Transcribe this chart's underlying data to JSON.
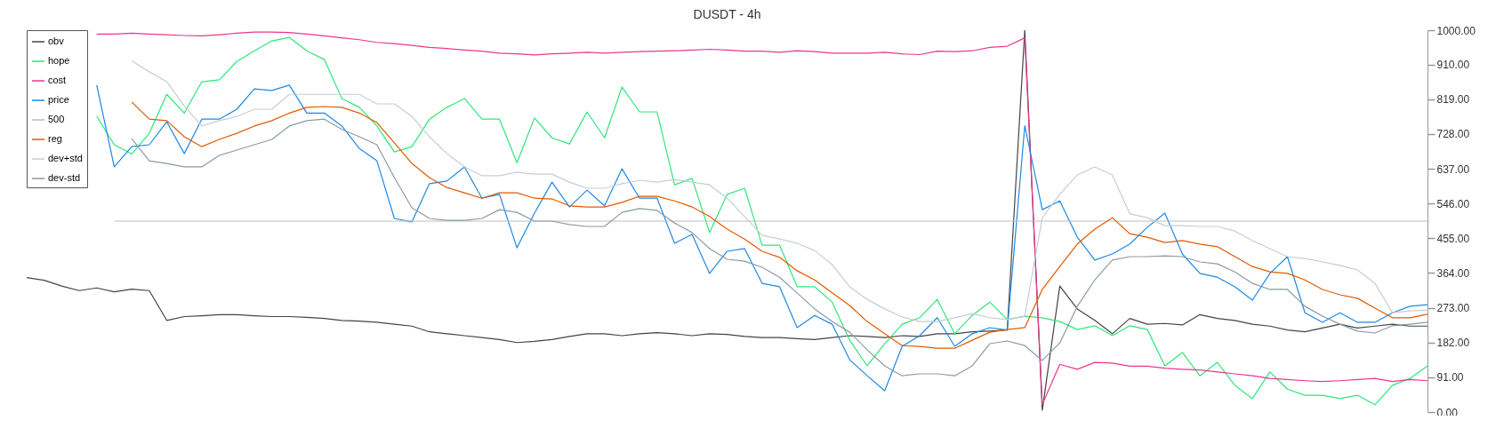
{
  "chart_data": {
    "type": "line",
    "title": "DUSDT - 4h",
    "categories": [
      null,
      null,
      null,
      null,
      null,
      null,
      null,
      null,
      null,
      null,
      null,
      null,
      null,
      null,
      null,
      null,
      null,
      null,
      null,
      null,
      null,
      null,
      null,
      null,
      null,
      null,
      null,
      null,
      null,
      null,
      null,
      null,
      null,
      null,
      null,
      null,
      null,
      null,
      null,
      null,
      null,
      null,
      null,
      null,
      null,
      null,
      null,
      null,
      null,
      null,
      null,
      null,
      null,
      null,
      null,
      null,
      null,
      null,
      null,
      null,
      null,
      null,
      null,
      null,
      null,
      null,
      null,
      null,
      null,
      null,
      null,
      null,
      null,
      null,
      null,
      null,
      null,
      null,
      null,
      null,
      null
    ],
    "series": [
      {
        "name": "obv",
        "color": "#444444",
        "values": [
          352,
          345,
          330,
          318,
          325,
          315,
          322,
          318,
          240,
          250,
          252,
          255,
          255,
          252,
          250,
          250,
          248,
          245,
          240,
          238,
          235,
          230,
          225,
          210,
          205,
          200,
          195,
          190,
          182,
          185,
          190,
          198,
          205,
          205,
          200,
          205,
          208,
          205,
          200,
          205,
          203,
          198,
          195,
          195,
          192,
          190,
          195,
          200,
          198,
          195,
          200,
          198,
          205,
          205,
          210,
          212,
          215,
          1000,
          5,
          330,
          270,
          240,
          205,
          245,
          230,
          232,
          228,
          255,
          245,
          240,
          230,
          225,
          215,
          210,
          220,
          230,
          220,
          225,
          230,
          225,
          225
        ]
      },
      {
        "name": "hope",
        "color": "#2ee67a",
        "values": [
          null,
          null,
          null,
          null,
          775,
          700,
          676,
          730,
          832,
          783,
          865,
          870,
          918,
          946,
          972,
          981,
          946,
          923,
          821,
          798,
          749,
          681,
          695,
          767,
          798,
          821,
          767,
          767,
          653,
          770,
          718,
          702,
          786,
          718,
          851,
          786,
          786,
          595,
          612,
          470,
          570,
          586,
          437,
          437,
          328,
          328,
          288,
          188,
          121,
          179,
          230,
          247,
          295,
          205,
          253,
          288,
          242,
          251,
          247,
          237,
          216,
          226,
          200,
          226,
          216,
          121,
          156,
          95,
          130,
          70,
          35,
          105,
          60,
          44,
          44,
          35,
          44,
          19,
          70,
          88,
          121
        ]
      },
      {
        "name": "cost",
        "color": "#e8388f",
        "values": [
          null,
          null,
          null,
          null,
          990,
          990,
          992,
          990,
          988,
          986,
          985,
          988,
          992,
          995,
          995,
          994,
          990,
          985,
          980,
          975,
          968,
          965,
          960,
          955,
          952,
          948,
          945,
          940,
          938,
          935,
          938,
          940,
          942,
          940,
          942,
          944,
          945,
          946,
          948,
          950,
          948,
          945,
          945,
          942,
          946,
          944,
          940,
          940,
          940,
          942,
          938,
          936,
          945,
          944,
          946,
          955,
          958,
          980,
          20,
          125,
          112,
          130,
          128,
          120,
          120,
          115,
          112,
          110,
          105,
          100,
          95,
          88,
          85,
          82,
          80,
          82,
          85,
          88,
          80,
          85,
          82
        ]
      },
      {
        "name": "price",
        "color": "#1e88e5",
        "values": [
          null,
          null,
          null,
          null,
          856,
          642,
          695,
          700,
          760,
          677,
          767,
          767,
          793,
          846,
          842,
          856,
          783,
          783,
          749,
          690,
          658,
          507,
          498,
          598,
          605,
          642,
          560,
          570,
          430,
          521,
          602,
          537,
          581,
          540,
          637,
          560,
          560,
          442,
          465,
          363,
          421,
          428,
          337,
          328,
          221,
          253,
          230,
          137,
          95,
          56,
          172,
          200,
          247,
          172,
          205,
          221,
          215,
          750,
          530,
          553,
          458,
          398,
          414,
          440,
          484,
          521,
          414,
          363,
          353,
          328,
          293,
          363,
          407,
          260,
          235,
          260,
          235,
          235,
          260,
          277,
          281
        ]
      },
      {
        "name": "500",
        "color": "#bdbdbd",
        "values": [
          null,
          null,
          null,
          null,
          null,
          500,
          500,
          500,
          500,
          500,
          500,
          500,
          500,
          500,
          500,
          500,
          500,
          500,
          500,
          500,
          500,
          500,
          500,
          500,
          500,
          500,
          500,
          500,
          500,
          500,
          500,
          500,
          500,
          500,
          500,
          500,
          500,
          500,
          500,
          500,
          500,
          500,
          500,
          500,
          500,
          500,
          500,
          500,
          500,
          500,
          500,
          500,
          500,
          500,
          500,
          500,
          500,
          500,
          500,
          500,
          500,
          500,
          500,
          500,
          500,
          500,
          500,
          500,
          500,
          500,
          500,
          500,
          500,
          500,
          500,
          500,
          500,
          500,
          500,
          500,
          500
        ]
      },
      {
        "name": "reg",
        "color": "#e05a00",
        "values": [
          null,
          null,
          null,
          null,
          null,
          null,
          812,
          767,
          763,
          721,
          695,
          714,
          730,
          749,
          763,
          783,
          798,
          800,
          798,
          783,
          758,
          705,
          651,
          614,
          588,
          574,
          560,
          574,
          574,
          560,
          558,
          540,
          537,
          537,
          549,
          565,
          565,
          553,
          537,
          512,
          479,
          453,
          421,
          405,
          370,
          346,
          312,
          279,
          237,
          205,
          174,
          172,
          167,
          167,
          188,
          209,
          216,
          221,
          321,
          381,
          440,
          479,
          509,
          467,
          458,
          444,
          449,
          440,
          433,
          407,
          381,
          367,
          363,
          346,
          321,
          307,
          298,
          272,
          247,
          247,
          256
        ]
      },
      {
        "name": "dev+std",
        "color": "#c5ced3",
        "values": [
          null,
          null,
          null,
          null,
          null,
          null,
          920,
          891,
          865,
          802,
          749,
          763,
          774,
          793,
          793,
          832,
          832,
          832,
          832,
          832,
          807,
          807,
          774,
          721,
          677,
          642,
          619,
          619,
          628,
          623,
          623,
          602,
          586,
          586,
          598,
          607,
          602,
          609,
          602,
          595,
          560,
          512,
          463,
          453,
          442,
          423,
          386,
          328,
          295,
          270,
          249,
          237,
          237,
          247,
          258,
          247,
          242,
          251,
          509,
          570,
          621,
          642,
          621,
          519,
          509,
          488,
          488,
          486,
          486,
          474,
          449,
          428,
          407,
          402,
          393,
          384,
          372,
          337,
          260,
          265,
          267
        ]
      },
      {
        "name": "dev-std",
        "color": "#8a9ba5",
        "values": [
          null,
          null,
          null,
          null,
          null,
          null,
          716,
          658,
          651,
          642,
          642,
          672,
          686,
          700,
          714,
          749,
          763,
          767,
          740,
          721,
          700,
          614,
          535,
          507,
          502,
          502,
          507,
          530,
          523,
          500,
          500,
          491,
          486,
          486,
          523,
          533,
          528,
          495,
          470,
          428,
          400,
          395,
          379,
          353,
          312,
          270,
          237,
          209,
          163,
          121,
          95,
          100,
          100,
          95,
          121,
          179,
          186,
          174,
          135,
          181,
          277,
          346,
          398,
          407,
          407,
          409,
          407,
          393,
          388,
          367,
          337,
          321,
          321,
          277,
          251,
          230,
          212,
          207,
          226,
          230,
          235
        ]
      }
    ],
    "ylim": [
      0,
      1000
    ],
    "yticks": [
      {
        "value": 0,
        "label": "0.00"
      },
      {
        "value": 91,
        "label": "91.00"
      },
      {
        "value": 182,
        "label": "182.00"
      },
      {
        "value": 273,
        "label": "273.00"
      },
      {
        "value": 364,
        "label": "364.00"
      },
      {
        "value": 455,
        "label": "455.00"
      },
      {
        "value": 546,
        "label": "546.00"
      },
      {
        "value": 637,
        "label": "637.00"
      },
      {
        "value": 728,
        "label": "728.00"
      },
      {
        "value": 819,
        "label": "819.00"
      },
      {
        "value": 910,
        "label": "910.00"
      },
      {
        "value": 1000,
        "label": "1000.00"
      }
    ],
    "tick_labels": "y",
    "legend": "top left"
  }
}
